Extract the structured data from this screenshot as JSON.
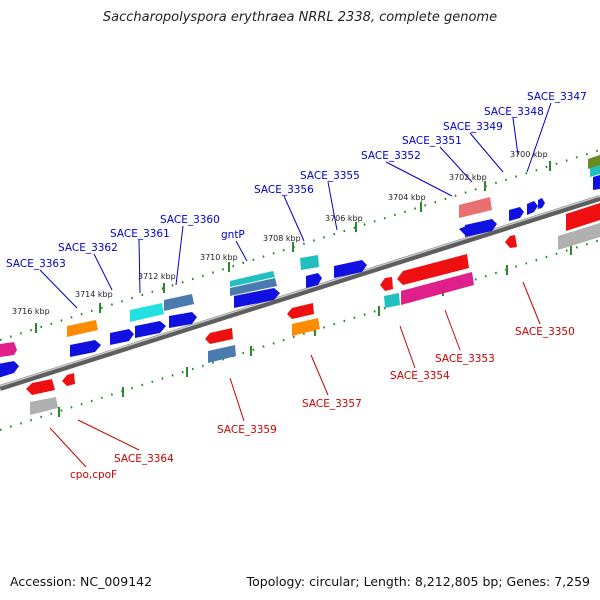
{
  "header": {
    "title": "Saccharopolyspora erythraea NRRL 2338, complete genome"
  },
  "footer": {
    "accession": "Accession: NC_009142",
    "summary": "Topology: circular; Length: 8,212,805 bp; Genes: 7,259"
  },
  "colors": {
    "forward_label": "#0000cc",
    "reverse_label": "#cc0000",
    "backbone": "#8a8a8a",
    "ruler": "#2a8a2a"
  },
  "tick_labels": [
    "3716 kbp",
    "3714 kbp",
    "3712 kbp",
    "3710 kbp",
    "3708 kbp",
    "3706 kbp",
    "3704 kbp",
    "3702 kbp",
    "3700 kbp"
  ],
  "forward_labels": [
    "SACE_3363",
    "SACE_3362",
    "SACE_3361",
    "SACE_3360",
    "gntP",
    "SACE_3356",
    "SACE_3355",
    "SACE_3352",
    "SACE_3351",
    "SACE_3349",
    "SACE_3348",
    "SACE_3347"
  ],
  "reverse_labels": [
    "cpo,cpoF",
    "SACE_3364",
    "SACE_3359",
    "SACE_3357",
    "SACE_3354",
    "SACE_3353",
    "SACE_3350"
  ]
}
